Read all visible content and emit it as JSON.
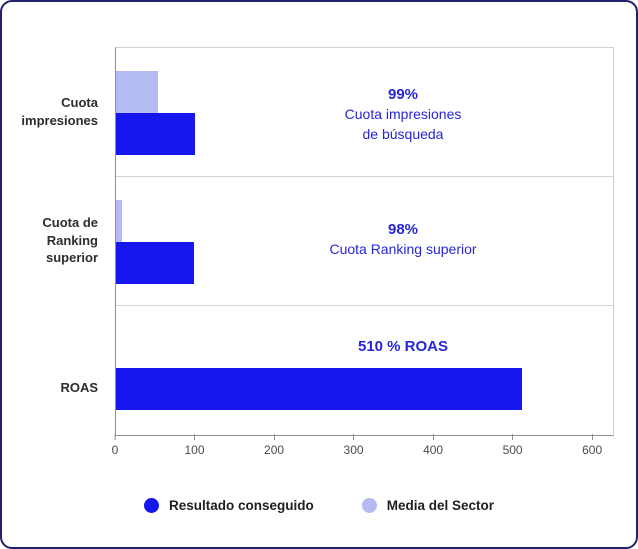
{
  "chart_data": {
    "type": "bar",
    "orientation": "horizontal",
    "title": "",
    "xlabel": "",
    "ylabel": "",
    "xlim": [
      0,
      625
    ],
    "xticks": [
      0,
      100,
      200,
      300,
      400,
      500,
      600
    ],
    "grid": "row-separators-only",
    "categories": [
      "Cuota impresiones",
      "Cuota de Ranking superior",
      "ROAS"
    ],
    "series": [
      {
        "name": "Resultado conseguido",
        "color": "#1616ee",
        "values": [
          99,
          98,
          510
        ]
      },
      {
        "name": "Media del Sector",
        "color": "#b4baf2",
        "values": [
          53,
          8,
          null
        ]
      }
    ],
    "annotations": [
      {
        "strong": "99%",
        "lines": [
          "Cuota impresiones",
          "de búsqueda"
        ]
      },
      {
        "strong": "98%",
        "lines": [
          "Cuota Ranking superior"
        ]
      },
      {
        "strong": "510 % ROAS",
        "lines": []
      }
    ]
  },
  "legend": {
    "items": [
      {
        "label": "Resultado conseguido",
        "color": "#1616ee"
      },
      {
        "label": "Media del Sector",
        "color": "#b4baf2"
      }
    ]
  },
  "colors": {
    "card_border": "#20206e",
    "annotation_text": "#2626d8",
    "axis_line": "#8f8f8f",
    "grid_line": "#d2d2d2",
    "category_label": "#2d2d2d",
    "tick_label": "#4c4c4c"
  }
}
